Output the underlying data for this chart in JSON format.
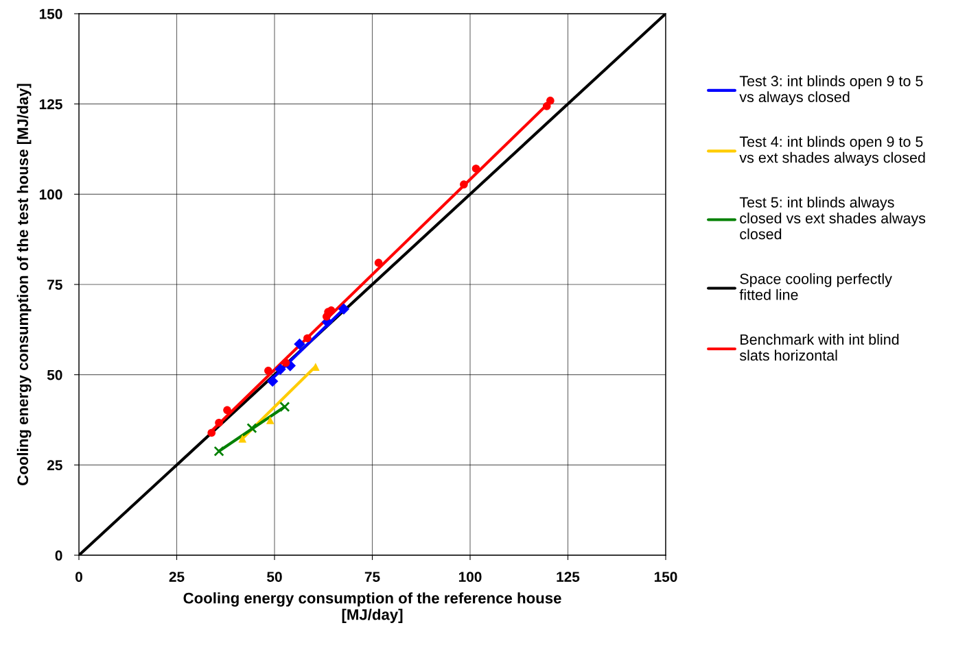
{
  "chart_data": {
    "type": "scatter",
    "xlabel": "Cooling energy consumption of the reference house\n[MJ/day]",
    "ylabel": "Cooling energy consumption of the test house [MJ/day]",
    "xlim": [
      0,
      150
    ],
    "ylim": [
      0,
      150
    ],
    "xticks": [
      0,
      25,
      50,
      75,
      100,
      125,
      150
    ],
    "yticks": [
      0,
      25,
      50,
      75,
      100,
      125,
      150
    ],
    "grid": true,
    "legend": "right",
    "series": [
      {
        "marker": "diamond",
        "color": "#0000ff",
        "x": [
          49.5,
          51.5,
          54.0,
          56.4,
          63.5,
          67.7
        ],
        "values": [
          48.2,
          51.5,
          52.5,
          58.5,
          64.6,
          68.2
        ]
      },
      {
        "marker": "triangle",
        "color": "#ffcc00",
        "x": [
          41.8,
          48.9,
          60.5
        ],
        "values": [
          32.3,
          37.4,
          52.2
        ]
      },
      {
        "marker": "cross",
        "color": "#008000",
        "x": [
          35.8,
          44.2,
          52.6
        ],
        "values": [
          28.8,
          35.2,
          41.1
        ]
      },
      {
        "marker": "circle",
        "color": "#ff0000",
        "x": [
          33.9,
          35.8,
          37.9,
          48.4,
          52.9,
          58.4,
          63.3,
          63.7,
          64.5,
          76.6,
          98.4,
          101.5,
          119.6,
          120.5
        ],
        "values": [
          33.9,
          36.7,
          40.2,
          51.1,
          53.3,
          60.1,
          66.1,
          67.4,
          67.8,
          81.0,
          102.7,
          107.1,
          124.4,
          125.9
        ]
      },
      {
        "type": "line",
        "name": "Test 3: int blinds open 9 to 5\nvs always closed",
        "color": "#0000ff",
        "x": [
          49.5,
          67.7
        ],
        "values": [
          49.0,
          68.2
        ]
      },
      {
        "type": "line",
        "name": "Test 4: int blinds open 9 to 5\nvs ext shades always closed",
        "color": "#ffcc00",
        "x": [
          41.5,
          60.5
        ],
        "values": [
          32.0,
          52.3
        ]
      },
      {
        "type": "line",
        "name": "Test 5: int blinds always\nclosed vs ext shades always\nclosed",
        "color": "#008000",
        "x": [
          35.8,
          52.6
        ],
        "values": [
          28.8,
          41.1
        ]
      },
      {
        "type": "line",
        "name": "Space cooling perfectly\nfitted line",
        "color": "#000000",
        "x": [
          0,
          150
        ],
        "values": [
          0,
          150
        ]
      },
      {
        "type": "line",
        "name": "Benchmark with int blind\nslats horizontal",
        "color": "#ff0000",
        "x": [
          33.5,
          120.5
        ],
        "values": [
          34.0,
          125.7
        ]
      }
    ]
  }
}
